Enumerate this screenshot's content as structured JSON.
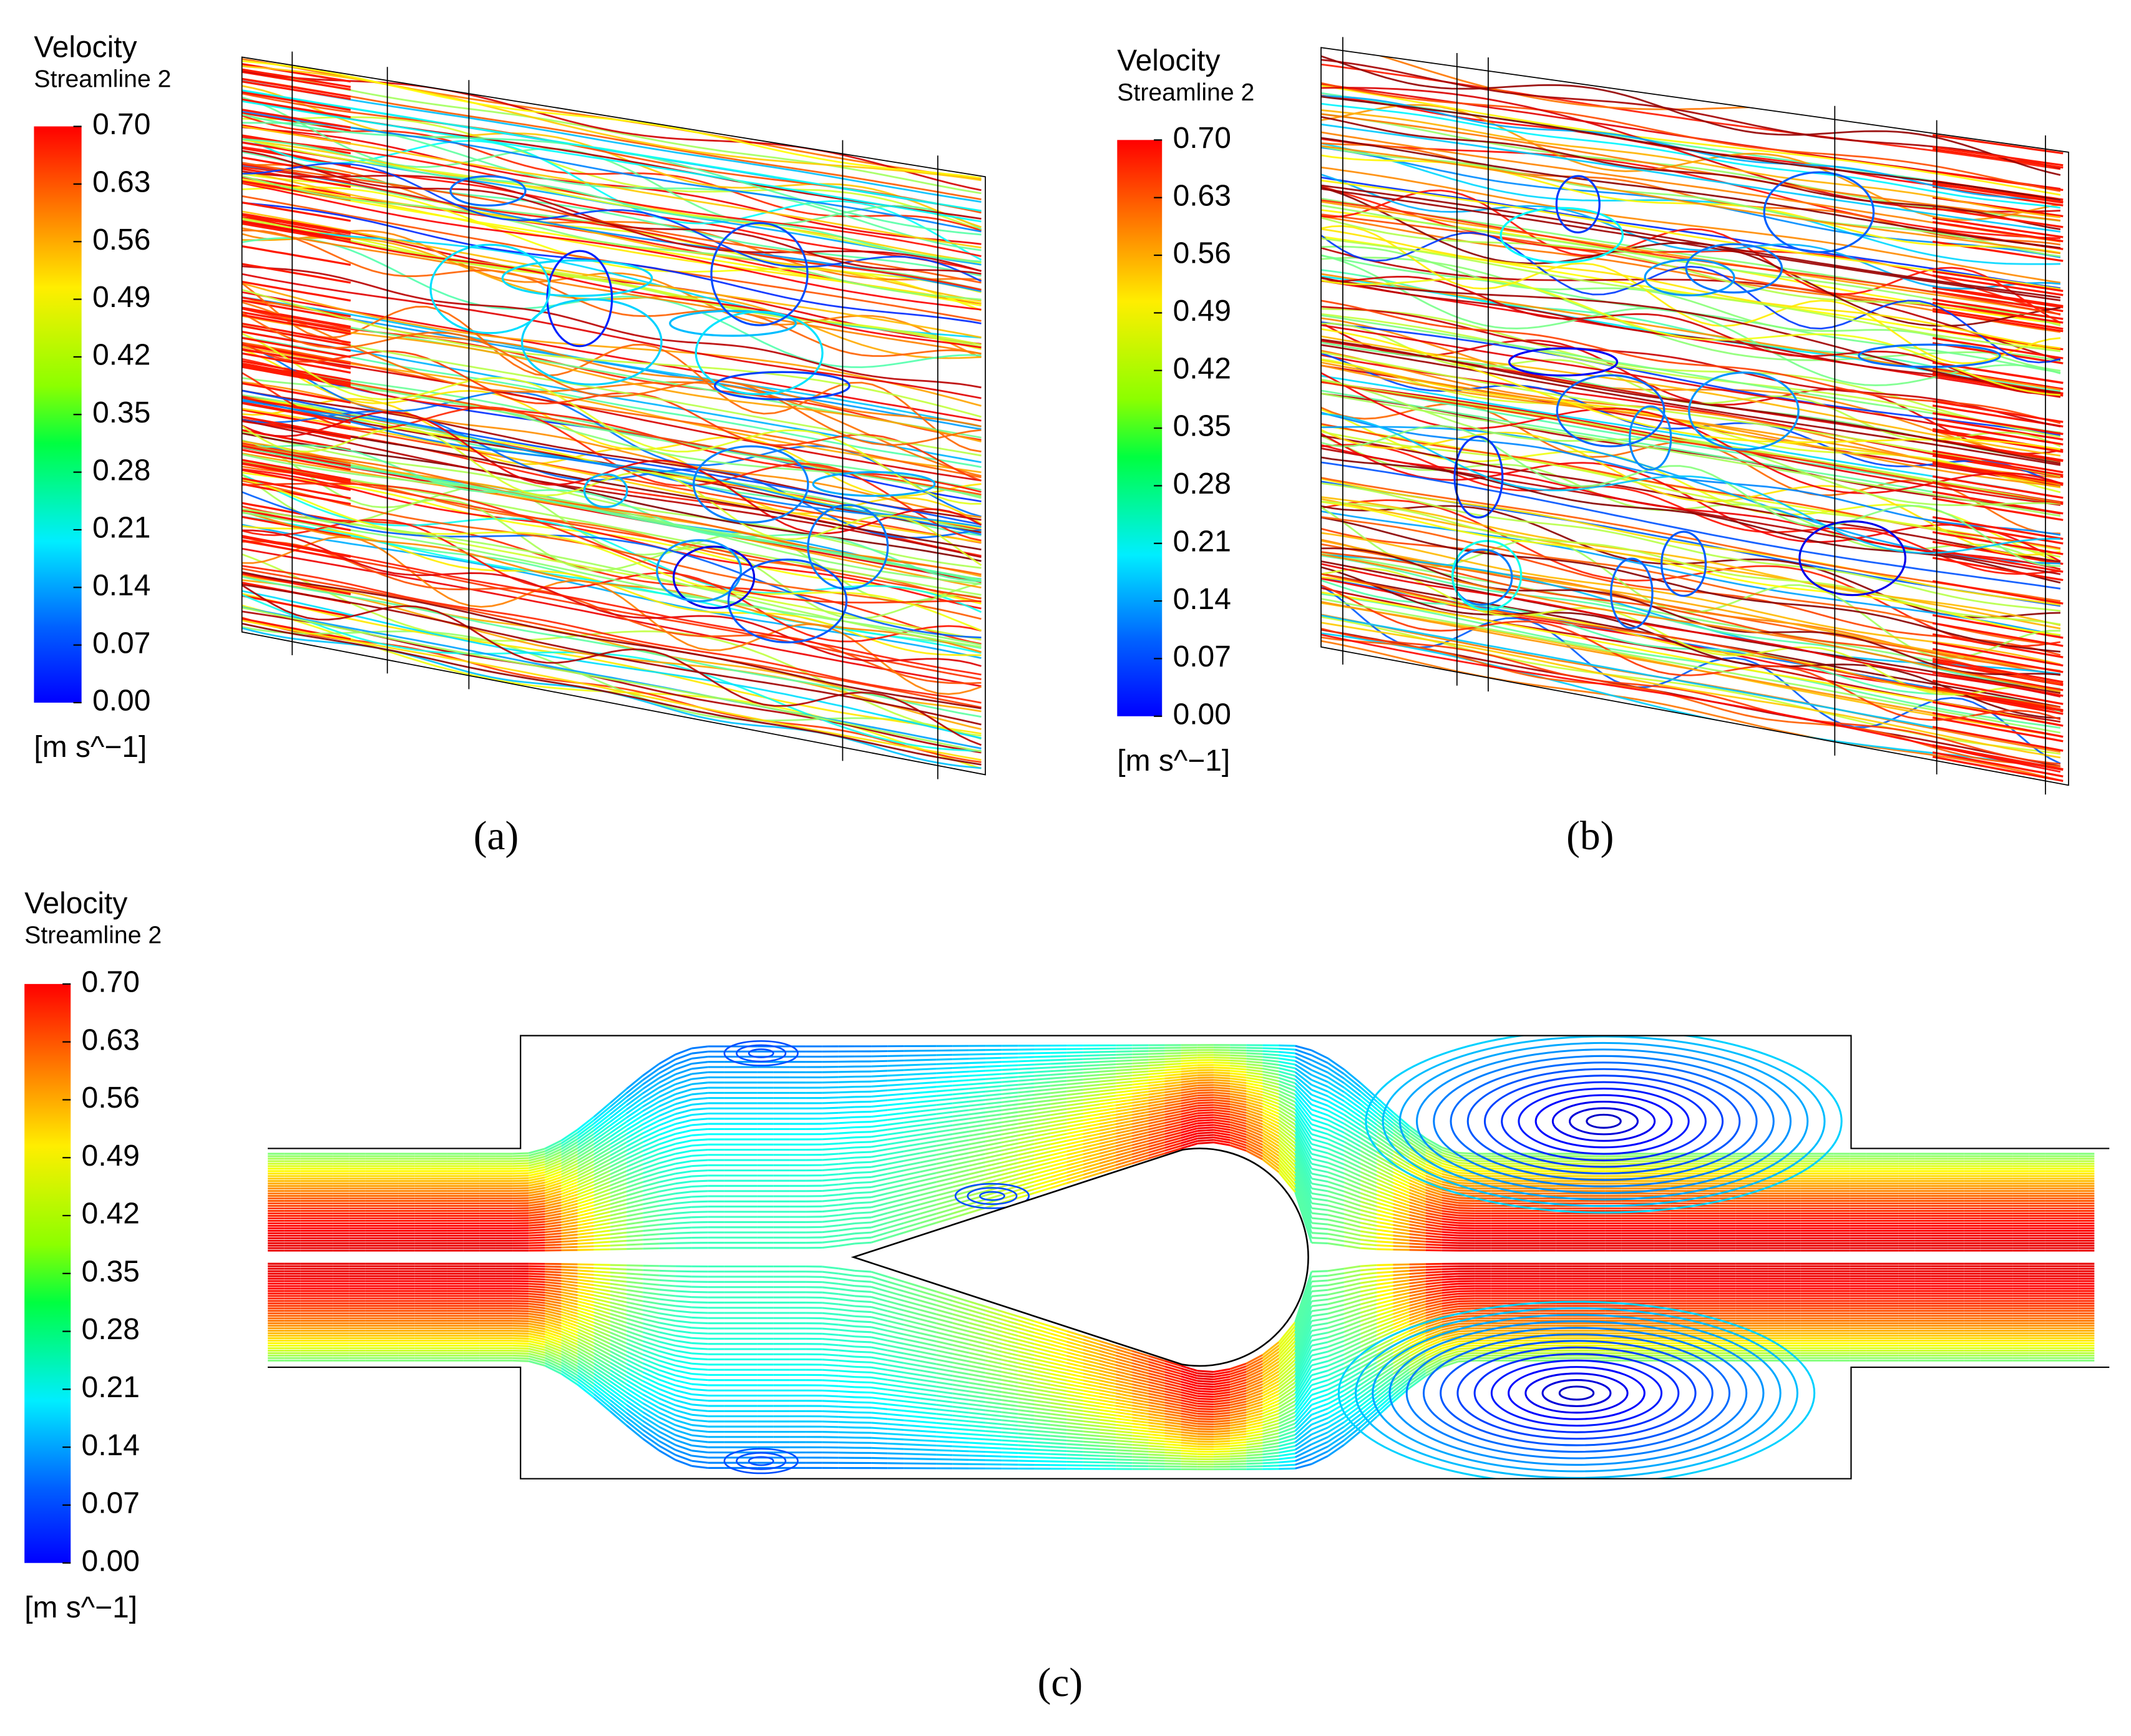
{
  "panels": [
    {
      "legend": {
        "title": "Velocity",
        "subtitle": "Streamline 2",
        "ticks": [
          "0.70",
          "0.63",
          "0.56",
          "0.49",
          "0.42",
          "0.35",
          "0.28",
          "0.21",
          "0.14",
          "0.07",
          "0.00"
        ],
        "unit": "[m s^−1]"
      },
      "caption": "(a)"
    },
    {
      "legend": {
        "title": "Velocity",
        "subtitle": "Streamline 2",
        "ticks": [
          "0.70",
          "0.63",
          "0.56",
          "0.49",
          "0.42",
          "0.35",
          "0.28",
          "0.21",
          "0.14",
          "0.07",
          "0.00"
        ],
        "unit": "[m s^−1]"
      },
      "caption": "(b)"
    },
    {
      "legend": {
        "title": "Velocity",
        "subtitle": "Streamline 2",
        "ticks": [
          "0.70",
          "0.63",
          "0.56",
          "0.49",
          "0.42",
          "0.35",
          "0.28",
          "0.21",
          "0.14",
          "0.07",
          "0.00"
        ],
        "unit": "[m s^−1]"
      },
      "caption": "(c)"
    }
  ]
}
